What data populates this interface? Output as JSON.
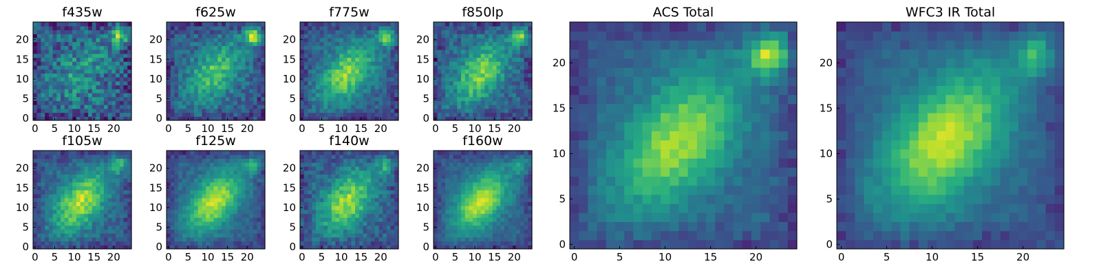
{
  "chart_data": [
    {
      "type": "heatmap",
      "title": "f435w",
      "seed": 11,
      "noise": 0.42,
      "galaxy_amp": 0.35,
      "companion_amp": 0.75,
      "x_ticks": [
        "0",
        "5",
        "10",
        "15",
        "20"
      ],
      "y_ticks": [
        "0",
        "5",
        "10",
        "15",
        "20"
      ],
      "xlim": [
        0,
        24
      ],
      "ylim": [
        0,
        24
      ]
    },
    {
      "type": "heatmap",
      "title": "f625w",
      "seed": 23,
      "noise": 0.26,
      "galaxy_amp": 0.7,
      "companion_amp": 0.95,
      "x_ticks": [
        "0",
        "5",
        "10",
        "15",
        "20"
      ],
      "y_ticks": [
        "0",
        "5",
        "10",
        "15",
        "20"
      ],
      "xlim": [
        0,
        24
      ],
      "ylim": [
        0,
        24
      ]
    },
    {
      "type": "heatmap",
      "title": "f775w",
      "seed": 37,
      "noise": 0.22,
      "galaxy_amp": 0.85,
      "companion_amp": 0.8,
      "x_ticks": [
        "0",
        "5",
        "10",
        "15",
        "20"
      ],
      "y_ticks": [
        "0",
        "5",
        "10",
        "15",
        "20"
      ],
      "xlim": [
        0,
        24
      ],
      "ylim": [
        0,
        24
      ]
    },
    {
      "type": "heatmap",
      "title": "f850lp",
      "seed": 41,
      "noise": 0.26,
      "galaxy_amp": 0.8,
      "companion_amp": 0.85,
      "x_ticks": [
        "0",
        "5",
        "10",
        "15",
        "20"
      ],
      "y_ticks": [
        "0",
        "5",
        "10",
        "15",
        "20"
      ],
      "xlim": [
        0,
        24
      ],
      "ylim": [
        0,
        24
      ]
    },
    {
      "type": "heatmap",
      "title": "f105w",
      "seed": 53,
      "noise": 0.2,
      "galaxy_amp": 0.95,
      "companion_amp": 0.55,
      "x_ticks": [
        "0",
        "5",
        "10",
        "15",
        "20"
      ],
      "y_ticks": [
        "0",
        "5",
        "10",
        "15",
        "20"
      ],
      "xlim": [
        0,
        24
      ],
      "ylim": [
        0,
        24
      ]
    },
    {
      "type": "heatmap",
      "title": "f125w",
      "seed": 67,
      "noise": 0.14,
      "galaxy_amp": 1.0,
      "companion_amp": 0.5,
      "x_ticks": [
        "0",
        "5",
        "10",
        "15",
        "20"
      ],
      "y_ticks": [
        "0",
        "5",
        "10",
        "15",
        "20"
      ],
      "xlim": [
        0,
        24
      ],
      "ylim": [
        0,
        24
      ]
    },
    {
      "type": "heatmap",
      "title": "f140w",
      "seed": 71,
      "noise": 0.24,
      "galaxy_amp": 0.9,
      "companion_amp": 0.5,
      "x_ticks": [
        "0",
        "5",
        "10",
        "15",
        "20"
      ],
      "y_ticks": [
        "0",
        "5",
        "10",
        "15",
        "20"
      ],
      "xlim": [
        0,
        24
      ],
      "ylim": [
        0,
        24
      ]
    },
    {
      "type": "heatmap",
      "title": "f160w",
      "seed": 83,
      "noise": 0.14,
      "galaxy_amp": 1.0,
      "companion_amp": 0.45,
      "x_ticks": [
        "0",
        "5",
        "10",
        "15",
        "20"
      ],
      "y_ticks": [
        "0",
        "5",
        "10",
        "15",
        "20"
      ],
      "xlim": [
        0,
        24
      ],
      "ylim": [
        0,
        24
      ]
    },
    {
      "type": "heatmap",
      "title": "ACS Total",
      "seed": 97,
      "noise": 0.12,
      "galaxy_amp": 0.9,
      "companion_amp": 0.95,
      "x_ticks": [
        "0",
        "5",
        "10",
        "15",
        "20"
      ],
      "y_ticks": [
        "0",
        "5",
        "10",
        "15",
        "20"
      ],
      "xlim": [
        0,
        24
      ],
      "ylim": [
        0,
        24
      ]
    },
    {
      "type": "heatmap",
      "title": "WFC3 IR Total",
      "seed": 109,
      "noise": 0.1,
      "galaxy_amp": 1.0,
      "companion_amp": 0.55,
      "x_ticks": [
        "0",
        "5",
        "10",
        "15",
        "20"
      ],
      "y_ticks": [
        "0",
        "5",
        "10",
        "15",
        "20"
      ],
      "xlim": [
        0,
        24
      ],
      "ylim": [
        0,
        24
      ]
    }
  ],
  "colormap": [
    "#440154",
    "#472c7a",
    "#3b518b",
    "#2c718e",
    "#21908d",
    "#27ad81",
    "#5cc863",
    "#aadc32",
    "#fde725"
  ]
}
